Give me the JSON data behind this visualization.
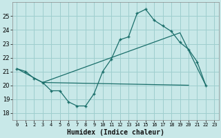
{
  "xlabel": "Humidex (Indice chaleur)",
  "bg_color": "#c8e8e8",
  "grid_color": "#9ecece",
  "line_color": "#1a6e6a",
  "xlim": [
    -0.5,
    23.5
  ],
  "ylim": [
    17.5,
    26.0
  ],
  "yticks": [
    18,
    19,
    20,
    21,
    22,
    23,
    24,
    25
  ],
  "xticks": [
    0,
    1,
    2,
    3,
    4,
    5,
    6,
    7,
    8,
    9,
    10,
    11,
    12,
    13,
    14,
    15,
    16,
    17,
    18,
    19,
    20,
    21,
    22,
    23
  ],
  "xtick_labels": [
    "0",
    "1",
    "2",
    "3",
    "4",
    "5",
    "6",
    "7",
    "8",
    "9",
    "10",
    "11",
    "12",
    "13",
    "14",
    "15",
    "16",
    "17",
    "18",
    "19",
    "20",
    "21",
    "22",
    "23"
  ],
  "ytick_labels": [
    "18",
    "19",
    "20",
    "21",
    "22",
    "23",
    "24",
    "25"
  ],
  "line1_x": [
    0,
    1,
    2,
    3,
    4,
    5,
    6,
    7,
    8,
    9,
    10,
    11,
    12,
    13,
    14,
    15,
    16,
    17,
    18,
    19,
    20,
    21,
    22
  ],
  "line1_y": [
    21.2,
    21.0,
    20.5,
    20.2,
    19.6,
    19.6,
    18.8,
    18.5,
    18.5,
    19.4,
    21.0,
    21.9,
    23.3,
    23.5,
    25.2,
    25.5,
    24.7,
    24.3,
    23.9,
    23.1,
    22.6,
    21.7,
    20.0
  ],
  "line2_x": [
    0,
    3,
    19,
    22
  ],
  "line2_y": [
    21.2,
    20.2,
    23.8,
    20.0
  ],
  "line3_x": [
    3,
    20
  ],
  "line3_y": [
    20.2,
    20.0
  ]
}
